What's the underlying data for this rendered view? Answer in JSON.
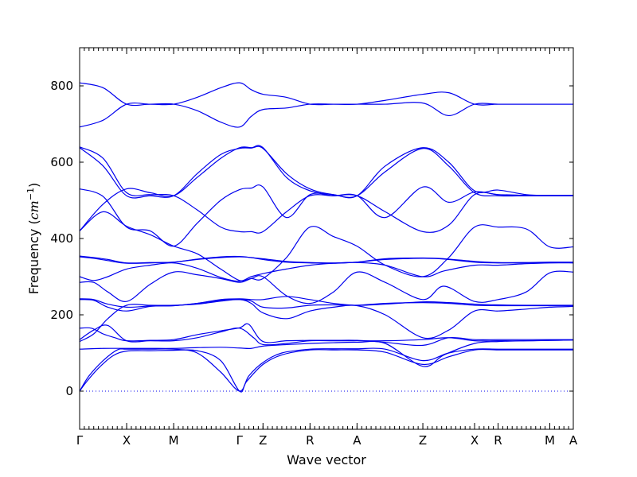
{
  "chart_data": {
    "type": "line",
    "xlabel": "Wave vector",
    "ylabel": "Frequency (cm⁻¹)",
    "ylabel_main": "Frequency (",
    "ylabel_unit": "cm",
    "ylabel_exp": "−1",
    "ylabel_close": ")",
    "xlim": [
      0,
      21
    ],
    "ylim": [
      -100,
      900
    ],
    "y_ticks": [
      0,
      200,
      400,
      600,
      800
    ],
    "x_ticks": [
      {
        "label": "Γ",
        "x": 0
      },
      {
        "label": "X",
        "x": 2
      },
      {
        "label": "M",
        "x": 4
      },
      {
        "label": "Γ",
        "x": 6.8
      },
      {
        "label": "Z",
        "x": 7.8
      },
      {
        "label": "R",
        "x": 9.8
      },
      {
        "label": "A",
        "x": 11.8
      },
      {
        "label": "Z",
        "x": 14.6
      },
      {
        "label": "X",
        "x": 16.8
      },
      {
        "label": "R",
        "x": 17.8
      },
      {
        "label": "M",
        "x": 20.0
      },
      {
        "label": "A",
        "x": 21.0
      }
    ],
    "zero_line": 0,
    "series_color": "#0000ee",
    "bands": [
      {
        "x": [
          0,
          0.3,
          0.8,
          1.4,
          2,
          3,
          4,
          5,
          6,
          6.8,
          7.1,
          7.8,
          8.6,
          9.8,
          10.8,
          11.8,
          13,
          14.6,
          15.7,
          16.8,
          17.8,
          19,
          20,
          21
        ],
        "y": [
          0,
          25,
          60,
          92,
          105,
          106,
          107,
          106,
          80,
          0,
          25,
          70,
          95,
          108,
          108,
          108,
          102,
          70,
          90,
          108,
          108,
          108,
          108,
          108
        ]
      },
      {
        "x": [
          0,
          0.4,
          1,
          1.6,
          2,
          3,
          4,
          5,
          6,
          6.8,
          7.2,
          7.8,
          8.6,
          9.8,
          10.8,
          11.8,
          13,
          14.6,
          15.7,
          16.8,
          17.8,
          19,
          20,
          21
        ],
        "y": [
          0,
          40,
          80,
          108,
          110,
          110,
          110,
          100,
          50,
          0,
          40,
          75,
          100,
          110,
          111,
          111,
          110,
          80,
          100,
          110,
          110,
          110,
          110,
          110
        ]
      },
      {
        "x": [
          0,
          1,
          2,
          3,
          4,
          5,
          6,
          6.8,
          7.3,
          7.8,
          8.8,
          9.8,
          10.8,
          11.8,
          13,
          14.6,
          15.5,
          16.8,
          17.8,
          19,
          20,
          21
        ],
        "y": [
          110,
          112,
          112,
          112,
          112,
          114,
          115,
          113,
          112,
          118,
          122,
          125,
          127,
          128,
          125,
          65,
          95,
          125,
          130,
          132,
          133,
          134
        ]
      },
      {
        "x": [
          0,
          0.6,
          1.2,
          2,
          3,
          4,
          5,
          6,
          6.8,
          7.4,
          7.8,
          8.8,
          9.8,
          10.8,
          11.8,
          13,
          14.6,
          15.7,
          16.8,
          17.8,
          19,
          20,
          21
        ],
        "y": [
          135,
          160,
          172,
          132,
          132,
          132,
          140,
          155,
          165,
          140,
          122,
          125,
          132,
          132,
          132,
          132,
          135,
          140,
          132,
          132,
          132,
          133,
          134
        ]
      },
      {
        "x": [
          0,
          0.5,
          1,
          1.5,
          2,
          3,
          4,
          5,
          6,
          6.8,
          7.2,
          7.8,
          8.8,
          9.8,
          10.8,
          11.8,
          13,
          14.6,
          15.7,
          16.8,
          17.8,
          19,
          20,
          21
        ],
        "y": [
          165,
          165,
          150,
          140,
          132,
          133,
          135,
          148,
          158,
          166,
          175,
          130,
          132,
          133,
          133,
          133,
          128,
          120,
          140,
          135,
          135,
          135,
          135,
          135
        ]
      },
      {
        "x": [
          0,
          0.6,
          1.2,
          2,
          3,
          4,
          5,
          6,
          6.8,
          7.3,
          7.8,
          8.8,
          9.8,
          10.8,
          11.8,
          13,
          14.6,
          15.7,
          16.8,
          17.8,
          19,
          20,
          21
        ],
        "y": [
          130,
          150,
          190,
          225,
          225,
          225,
          228,
          236,
          240,
          230,
          205,
          190,
          210,
          220,
          224,
          200,
          140,
          160,
          210,
          210,
          215,
          220,
          222
        ]
      },
      {
        "x": [
          0,
          0.6,
          1.2,
          2,
          3,
          4,
          5,
          6,
          6.8,
          7.3,
          7.8,
          8.8,
          9.8,
          10.8,
          11.8,
          13,
          14.6,
          15.7,
          16.8,
          17.8,
          19,
          20,
          21
        ],
        "y": [
          240,
          238,
          220,
          210,
          222,
          224,
          230,
          238,
          240,
          236,
          220,
          218,
          225,
          226,
          225,
          230,
          232,
          230,
          225,
          224,
          224,
          224,
          224
        ]
      },
      {
        "x": [
          0,
          0.6,
          1.2,
          2,
          3,
          4,
          5,
          6,
          6.8,
          7.3,
          7.8,
          8.8,
          9.8,
          10.8,
          11.8,
          13,
          14.6,
          15.7,
          16.8,
          17.8,
          19,
          20,
          21
        ],
        "y": [
          242,
          240,
          228,
          220,
          223,
          224,
          230,
          240,
          242,
          240,
          240,
          248,
          240,
          230,
          225,
          228,
          234,
          232,
          228,
          226,
          225,
          225,
          225
        ]
      },
      {
        "x": [
          0,
          0.6,
          1.2,
          2,
          3,
          4,
          5,
          6,
          6.8,
          7.3,
          7.8,
          8.8,
          9.8,
          10.8,
          11.8,
          13,
          14.6,
          15.5,
          16.8,
          17.8,
          19,
          20,
          21
        ],
        "y": [
          285,
          285,
          260,
          235,
          280,
          312,
          305,
          295,
          285,
          295,
          300,
          250,
          230,
          260,
          312,
          285,
          240,
          275,
          235,
          240,
          260,
          310,
          312
        ]
      },
      {
        "x": [
          0,
          0.6,
          1.2,
          2,
          3,
          4,
          5,
          6,
          6.8,
          7.3,
          7.8,
          8.8,
          9.8,
          10.8,
          11.8,
          13,
          14.6,
          15.5,
          16.8,
          17.8,
          19,
          20,
          21
        ],
        "y": [
          300,
          290,
          300,
          320,
          330,
          336,
          322,
          298,
          288,
          300,
          308,
          320,
          330,
          335,
          337,
          330,
          300,
          315,
          330,
          330,
          334,
          336,
          336
        ]
      },
      {
        "x": [
          0,
          0.6,
          1.2,
          2,
          3,
          4,
          5,
          6,
          6.8,
          7.3,
          7.8,
          8.8,
          9.8,
          10.8,
          11.8,
          13,
          14.6,
          15.5,
          16.8,
          17.8,
          19,
          20,
          21
        ],
        "y": [
          352,
          348,
          342,
          335,
          336,
          338,
          345,
          350,
          352,
          350,
          345,
          338,
          336,
          335,
          338,
          345,
          348,
          346,
          338,
          336,
          336,
          337,
          337
        ]
      },
      {
        "x": [
          0,
          0.6,
          1.2,
          2,
          3,
          4,
          5,
          6,
          6.8,
          7.3,
          7.8,
          8.8,
          9.8,
          10.8,
          11.8,
          13,
          14.6,
          15.5,
          16.8,
          17.8,
          19,
          20,
          21
        ],
        "y": [
          354,
          350,
          345,
          336,
          337,
          338,
          346,
          352,
          353,
          350,
          347,
          340,
          337,
          336,
          338,
          347,
          349,
          347,
          340,
          337,
          337,
          338,
          338
        ]
      },
      {
        "x": [
          0,
          1,
          2,
          3,
          4,
          5,
          6,
          6.8,
          7.3,
          7.8,
          8.8,
          9.8,
          10.8,
          11.8,
          13,
          14.6,
          15.7,
          16.8,
          17.8,
          19,
          20,
          21
        ],
        "y": [
          420,
          470,
          432,
          410,
          380,
          360,
          320,
          290,
          295,
          295,
          350,
          430,
          405,
          380,
          330,
          300,
          350,
          430,
          430,
          425,
          378,
          378
        ]
      },
      {
        "x": [
          0,
          1,
          2,
          3,
          4,
          5,
          6,
          6.8,
          7.3,
          7.8,
          8.8,
          9.8,
          10.8,
          11.8,
          13,
          14.6,
          15.7,
          16.8,
          17.8,
          19,
          20,
          21
        ],
        "y": [
          420,
          490,
          530,
          520,
          512,
          560,
          610,
          638,
          638,
          638,
          560,
          525,
          515,
          512,
          590,
          638,
          600,
          525,
          527,
          515,
          513,
          513
        ]
      },
      {
        "x": [
          0,
          1,
          2,
          3,
          4,
          5,
          6,
          6.8,
          7.3,
          7.8,
          8.8,
          9.8,
          10.8,
          11.8,
          13,
          14.6,
          15.7,
          16.8,
          17.8,
          19,
          20,
          21
        ],
        "y": [
          530,
          510,
          430,
          420,
          380,
          440,
          500,
          528,
          532,
          535,
          455,
          515,
          512,
          512,
          470,
          418,
          435,
          515,
          515,
          513,
          513,
          513
        ]
      },
      {
        "x": [
          0,
          1,
          2,
          3,
          4,
          5,
          6,
          6.8,
          7.3,
          7.8,
          8.8,
          9.8,
          10.8,
          11.8,
          13,
          14.6,
          15.7,
          16.8,
          17.8,
          19,
          20,
          21
        ],
        "y": [
          640,
          610,
          520,
          515,
          512,
          475,
          430,
          418,
          418,
          418,
          470,
          512,
          512,
          512,
          455,
          535,
          495,
          522,
          515,
          512,
          512,
          512
        ]
      },
      {
        "x": [
          0,
          1,
          2,
          3,
          4,
          5,
          6,
          6.8,
          7.3,
          7.8,
          8.8,
          9.8,
          10.8,
          11.8,
          13,
          14.6,
          15.7,
          16.8,
          17.8,
          19,
          20,
          21
        ],
        "y": [
          638,
          590,
          512,
          512,
          512,
          570,
          620,
          636,
          637,
          636,
          570,
          530,
          515,
          512,
          575,
          636,
          590,
          520,
          512,
          512,
          512,
          512
        ]
      },
      {
        "x": [
          0,
          1,
          2,
          3,
          4,
          5,
          6,
          6.8,
          7.3,
          7.8,
          8.8,
          9.8,
          10.8,
          11.8,
          13,
          14.6,
          15.7,
          16.8,
          17.8,
          19,
          20,
          21
        ],
        "y": [
          692,
          710,
          752,
          752,
          752,
          770,
          795,
          808,
          790,
          778,
          770,
          752,
          752,
          752,
          752,
          755,
          722,
          752,
          752,
          752,
          752,
          752
        ]
      },
      {
        "x": [
          0,
          1,
          2,
          3,
          4,
          5,
          6,
          6.8,
          7.3,
          7.8,
          8.8,
          9.8,
          10.8,
          11.8,
          13,
          14.6,
          15.7,
          16.8,
          17.8,
          19,
          20,
          21
        ],
        "y": [
          808,
          795,
          752,
          752,
          752,
          735,
          705,
          692,
          720,
          738,
          742,
          752,
          752,
          752,
          762,
          778,
          782,
          752,
          752,
          752,
          752,
          752
        ]
      }
    ]
  }
}
